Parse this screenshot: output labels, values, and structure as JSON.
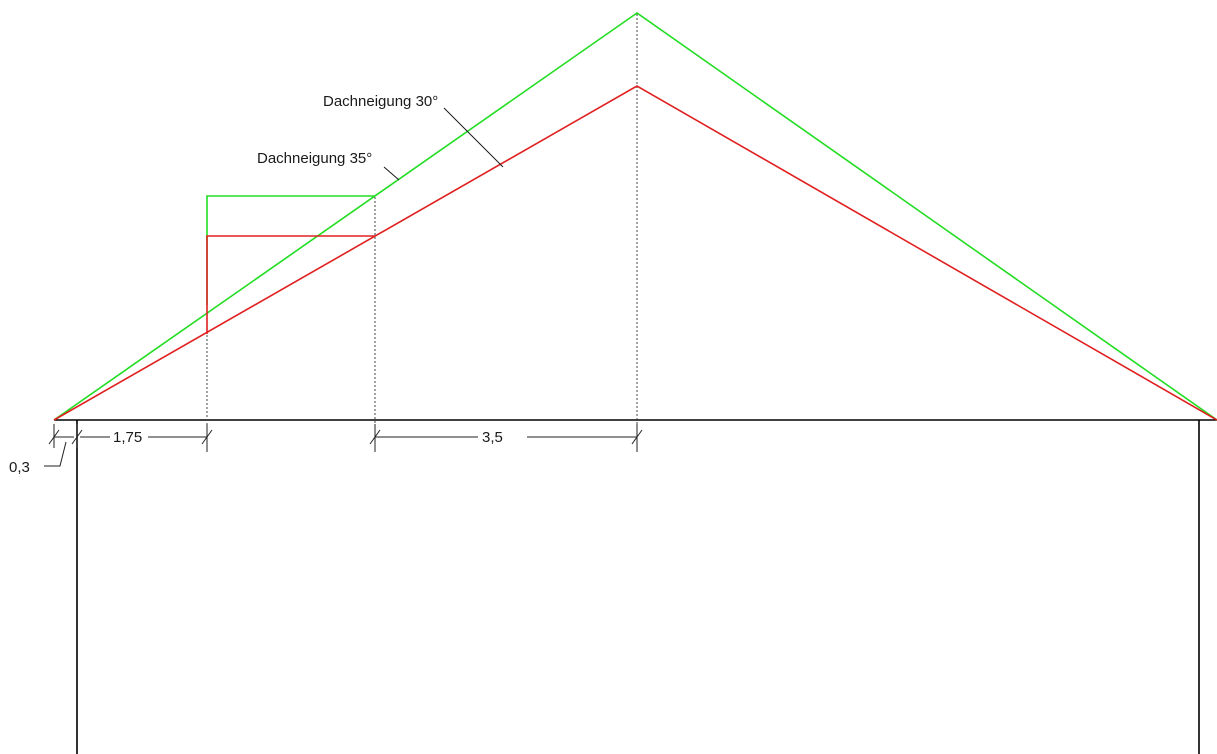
{
  "labels": {
    "pitch_30": "Dachneigung 30°",
    "pitch_35": "Dachneigung 35°"
  },
  "dimensions": {
    "eave_offset": "0,3",
    "dormer_distance": "1,75",
    "dormer_to_ridge": "3,5"
  },
  "colors": {
    "roof_35": "#22dd22",
    "roof_30": "#e02020",
    "outline": "#000000",
    "dim_line": "#222222"
  }
}
